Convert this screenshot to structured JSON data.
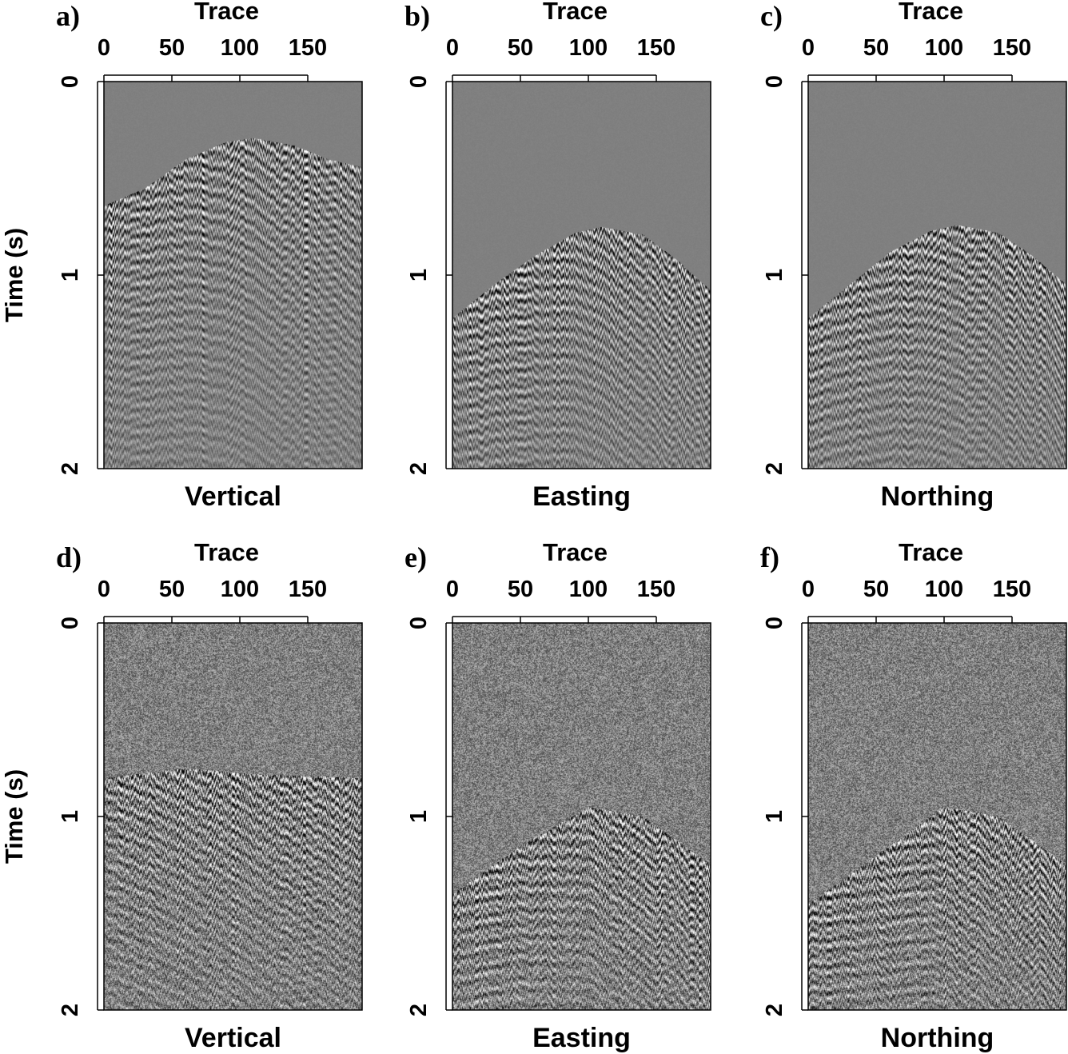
{
  "figure": {
    "background": "#ffffff",
    "panel_fill": "#808080"
  },
  "chart_data": [
    {
      "type": "heatmap",
      "panel_label": "a)",
      "title": "",
      "xlabel": "Trace",
      "ylabel": "Time (s)",
      "caption": "Vertical",
      "xticks": [
        "0",
        "50",
        "100",
        "150"
      ],
      "yticks": [
        "0",
        "1",
        "2"
      ],
      "xlim": [
        0,
        190
      ],
      "ylim": [
        0,
        2
      ],
      "x_tick_values": [
        0,
        50,
        100,
        150
      ],
      "y_tick_values": [
        0,
        1,
        2
      ],
      "colormap": "gray",
      "arrivals": [
        {
          "x": 0,
          "t": 0.64
        },
        {
          "x": 30,
          "t": 0.55
        },
        {
          "x": 60,
          "t": 0.4
        },
        {
          "x": 90,
          "t": 0.31
        },
        {
          "x": 110,
          "t": 0.29
        },
        {
          "x": 140,
          "t": 0.33
        },
        {
          "x": 165,
          "t": 0.4
        },
        {
          "x": 190,
          "t": 0.44
        }
      ],
      "noise_level": 0.15
    },
    {
      "type": "heatmap",
      "panel_label": "b)",
      "title": "",
      "xlabel": "Trace",
      "ylabel": "",
      "caption": "Easting",
      "xticks": [
        "0",
        "50",
        "100",
        "150"
      ],
      "yticks": [
        "0",
        "1",
        "2"
      ],
      "xlim": [
        0,
        190
      ],
      "ylim": [
        0,
        2
      ],
      "x_tick_values": [
        0,
        50,
        100,
        150
      ],
      "y_tick_values": [
        0,
        1,
        2
      ],
      "colormap": "gray",
      "arrivals": [
        {
          "x": 0,
          "t": 1.22
        },
        {
          "x": 30,
          "t": 1.05
        },
        {
          "x": 60,
          "t": 0.9
        },
        {
          "x": 90,
          "t": 0.78
        },
        {
          "x": 110,
          "t": 0.75
        },
        {
          "x": 140,
          "t": 0.79
        },
        {
          "x": 165,
          "t": 0.92
        },
        {
          "x": 190,
          "t": 1.08
        }
      ],
      "noise_level": 0.15
    },
    {
      "type": "heatmap",
      "panel_label": "c)",
      "title": "",
      "xlabel": "Trace",
      "ylabel": "",
      "caption": "Northing",
      "xticks": [
        "0",
        "50",
        "100",
        "150"
      ],
      "yticks": [
        "0",
        "1",
        "2"
      ],
      "xlim": [
        0,
        190
      ],
      "ylim": [
        0,
        2
      ],
      "x_tick_values": [
        0,
        50,
        100,
        150
      ],
      "y_tick_values": [
        0,
        1,
        2
      ],
      "colormap": "gray",
      "arrivals": [
        {
          "x": 0,
          "t": 1.22
        },
        {
          "x": 30,
          "t": 1.05
        },
        {
          "x": 60,
          "t": 0.88
        },
        {
          "x": 90,
          "t": 0.77
        },
        {
          "x": 110,
          "t": 0.74
        },
        {
          "x": 140,
          "t": 0.78
        },
        {
          "x": 165,
          "t": 0.9
        },
        {
          "x": 190,
          "t": 1.05
        }
      ],
      "noise_level": 0.15
    },
    {
      "type": "heatmap",
      "panel_label": "d)",
      "title": "",
      "xlabel": "Trace",
      "ylabel": "Time (s)",
      "caption": "Vertical",
      "xticks": [
        "0",
        "50",
        "100",
        "150"
      ],
      "yticks": [
        "0",
        "1",
        "2"
      ],
      "xlim": [
        0,
        190
      ],
      "ylim": [
        0,
        2
      ],
      "x_tick_values": [
        0,
        50,
        100,
        150
      ],
      "y_tick_values": [
        0,
        1,
        2
      ],
      "colormap": "gray",
      "arrivals": [
        {
          "x": 0,
          "t": 0.8
        },
        {
          "x": 60,
          "t": 0.75
        },
        {
          "x": 110,
          "t": 0.78
        },
        {
          "x": 190,
          "t": 0.8
        }
      ],
      "noise_level": 0.55
    },
    {
      "type": "heatmap",
      "panel_label": "e)",
      "title": "",
      "xlabel": "Trace",
      "ylabel": "",
      "caption": "Easting",
      "xticks": [
        "0",
        "50",
        "100",
        "150"
      ],
      "yticks": [
        "0",
        "1",
        "2"
      ],
      "xlim": [
        0,
        190
      ],
      "ylim": [
        0,
        2
      ],
      "x_tick_values": [
        0,
        50,
        100,
        150
      ],
      "y_tick_values": [
        0,
        1,
        2
      ],
      "colormap": "gray",
      "arrivals": [
        {
          "x": 0,
          "t": 1.4
        },
        {
          "x": 50,
          "t": 1.15
        },
        {
          "x": 100,
          "t": 0.95
        },
        {
          "x": 140,
          "t": 1.0
        },
        {
          "x": 190,
          "t": 1.25
        }
      ],
      "noise_level": 0.55
    },
    {
      "type": "heatmap",
      "panel_label": "f)",
      "title": "",
      "xlabel": "Trace",
      "ylabel": "",
      "caption": "Northing",
      "xticks": [
        "0",
        "50",
        "100",
        "150"
      ],
      "yticks": [
        "0",
        "1",
        "2"
      ],
      "xlim": [
        0,
        190
      ],
      "ylim": [
        0,
        2
      ],
      "x_tick_values": [
        0,
        50,
        100,
        150
      ],
      "y_tick_values": [
        0,
        1,
        2
      ],
      "colormap": "gray",
      "arrivals": [
        {
          "x": 0,
          "t": 1.45
        },
        {
          "x": 50,
          "t": 1.2
        },
        {
          "x": 100,
          "t": 0.95
        },
        {
          "x": 140,
          "t": 1.0
        },
        {
          "x": 190,
          "t": 1.25
        }
      ],
      "noise_level": 0.55
    }
  ]
}
